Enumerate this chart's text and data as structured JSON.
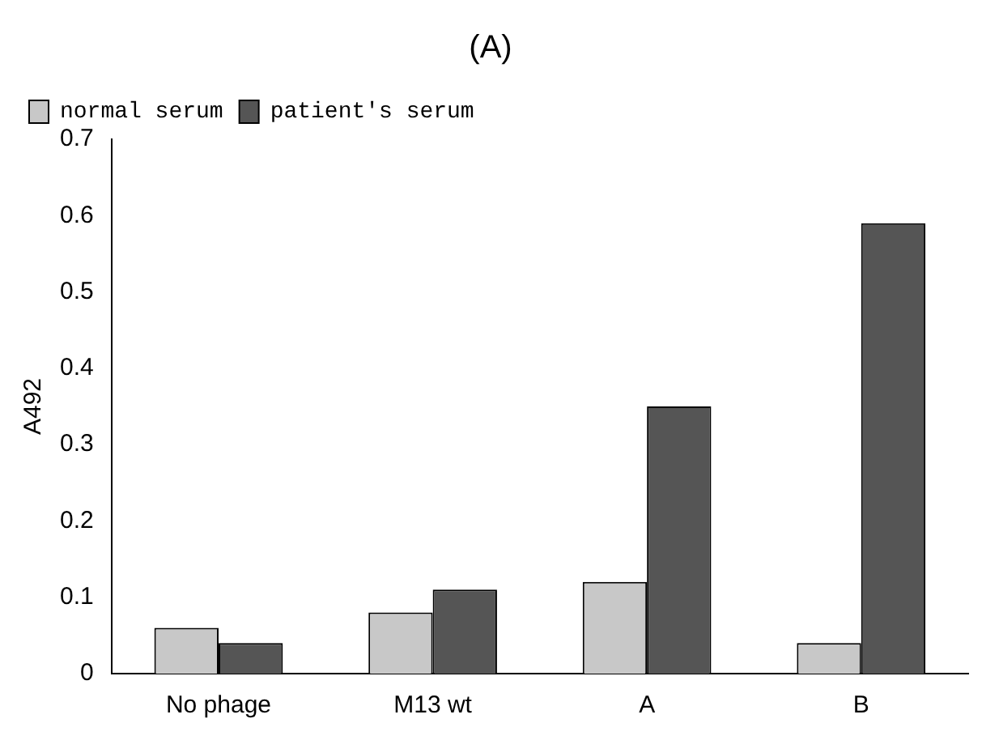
{
  "chart_data": {
    "type": "bar",
    "title": "(A)",
    "ylabel": "A492",
    "categories": [
      "No phage",
      "M13 wt",
      "A",
      "B"
    ],
    "series": [
      {
        "name": "normal serum",
        "color": "#c8c8c8",
        "values": [
          0.06,
          0.08,
          0.12,
          0.04
        ]
      },
      {
        "name": "patient's serum",
        "color": "#555555",
        "values": [
          0.04,
          0.11,
          0.35,
          0.59
        ]
      }
    ],
    "ylim": [
      0,
      0.7
    ],
    "yticks": [
      0,
      0.1,
      0.2,
      0.3,
      0.4,
      0.5,
      0.6,
      0.7
    ],
    "grid": false,
    "legend": "top left"
  }
}
